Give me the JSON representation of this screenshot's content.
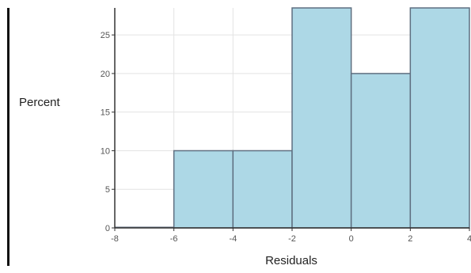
{
  "chart_data": {
    "type": "bar",
    "xlabel": "Residuals",
    "ylabel": "Percent",
    "bins": [
      {
        "x0": -8,
        "x1": -6,
        "value": 0
      },
      {
        "x0": -6,
        "x1": -4,
        "value": 10
      },
      {
        "x0": -4,
        "x1": -2,
        "value": 10
      },
      {
        "x0": -2,
        "x1": 0,
        "value": 30
      },
      {
        "x0": 0,
        "x1": 2,
        "value": 20
      },
      {
        "x0": 2,
        "x1": 4,
        "value": 30
      }
    ],
    "xlim": [
      -8,
      4
    ],
    "ylim": [
      0,
      28.5
    ],
    "xticks": [
      -8,
      -6,
      -4,
      -2,
      0,
      2,
      4
    ],
    "yticks": [
      0,
      5,
      10,
      15,
      20,
      25
    ],
    "grid": true,
    "colors": {
      "bar_fill": "#add8e6",
      "bar_stroke": "#5f6f80",
      "grid": "#e3e3e3",
      "axis": "#333333"
    }
  }
}
